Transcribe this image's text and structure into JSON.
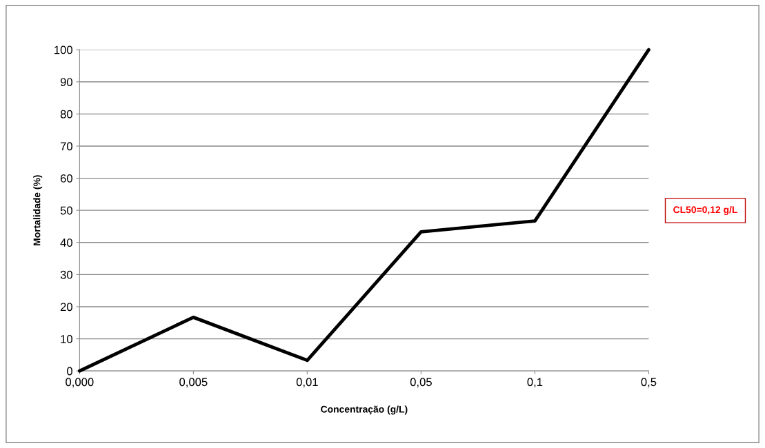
{
  "chart_data": {
    "type": "line",
    "xlabel": "Concentração (g/L)",
    "ylabel": "Mortalidade (%)",
    "categories": [
      "0,000",
      "0,005",
      "0,01",
      "0,05",
      "0,1",
      "0,5"
    ],
    "series": [
      {
        "color": "#000000",
        "values": [
          0,
          16.7,
          3.3,
          43.3,
          46.7,
          100
        ]
      }
    ],
    "ylim": [
      0,
      100
    ],
    "yticks": [
      0,
      10,
      20,
      30,
      40,
      50,
      60,
      70,
      80,
      90,
      100
    ],
    "grid": "y",
    "legend": false,
    "marker": "none",
    "line_style": "solid",
    "annotations": [
      "CL50=0,12 g/L"
    ]
  }
}
